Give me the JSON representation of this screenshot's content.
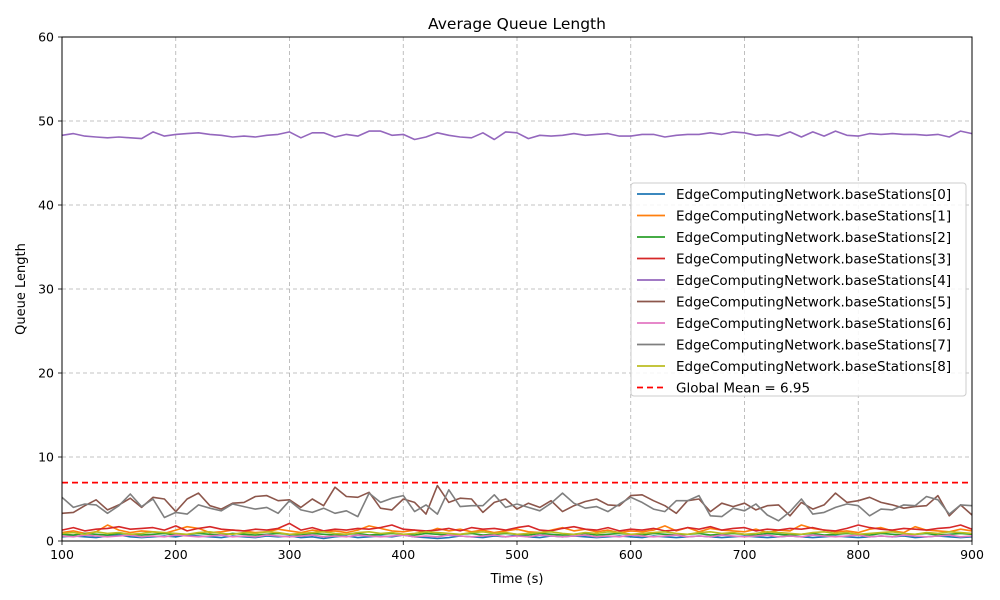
{
  "chart_data": {
    "type": "line",
    "title": "Average Queue Length",
    "xlabel": "Time (s)",
    "ylabel": "Queue Length",
    "xlim": [
      100,
      900
    ],
    "ylim": [
      0,
      60
    ],
    "xticks": [
      "100",
      "200",
      "300",
      "400",
      "500",
      "600",
      "700",
      "800",
      "900"
    ],
    "yticks": [
      "0",
      "10",
      "20",
      "30",
      "40",
      "50",
      "60"
    ],
    "grid": true,
    "legend_position": "center-right",
    "x": [
      100,
      110,
      120,
      130,
      140,
      150,
      160,
      170,
      180,
      190,
      200,
      210,
      220,
      230,
      240,
      250,
      260,
      270,
      280,
      290,
      300,
      310,
      320,
      330,
      340,
      350,
      360,
      370,
      380,
      390,
      400,
      410,
      420,
      430,
      440,
      450,
      460,
      470,
      480,
      490,
      500,
      510,
      520,
      530,
      540,
      550,
      560,
      570,
      580,
      590,
      600,
      610,
      620,
      630,
      640,
      650,
      660,
      670,
      680,
      690,
      700,
      710,
      720,
      730,
      740,
      750,
      760,
      770,
      780,
      790,
      800,
      810,
      820,
      830,
      840,
      850,
      860,
      870,
      880,
      890,
      900
    ],
    "series": [
      {
        "name": "EdgeComputingNetwork.baseStations[0]",
        "color": "#1f77b4",
        "values": [
          0.5,
          0.6,
          0.5,
          0.4,
          0.6,
          0.7,
          0.5,
          0.4,
          0.5,
          0.6,
          0.5,
          0.7,
          0.6,
          0.5,
          0.4,
          0.6,
          0.5,
          0.4,
          0.6,
          0.5,
          0.6,
          0.4,
          0.5,
          0.3,
          0.5,
          0.6,
          0.4,
          0.5,
          0.6,
          0.5,
          0.7,
          0.5,
          0.4,
          0.3,
          0.4,
          0.6,
          0.5,
          0.4,
          0.6,
          0.5,
          0.7,
          0.5,
          0.4,
          0.6,
          0.5,
          0.6,
          0.5,
          0.4,
          0.5,
          0.6,
          0.5,
          0.4,
          0.6,
          0.5,
          0.4,
          0.5,
          0.6,
          0.5,
          0.4,
          0.5,
          0.6,
          0.5,
          0.4,
          0.5,
          0.6,
          0.5,
          0.4,
          0.5,
          0.6,
          0.5,
          0.4,
          0.5,
          0.6,
          0.5,
          0.6,
          0.4,
          0.5,
          0.6,
          0.5,
          0.4,
          0.5
        ]
      },
      {
        "name": "EdgeComputingNetwork.baseStations[1]",
        "color": "#ff7f0e",
        "values": [
          1.0,
          1.2,
          0.9,
          1.1,
          1.9,
          1.3,
          1.0,
          1.2,
          1.1,
          0.9,
          1.3,
          1.7,
          1.5,
          1.0,
          1.1,
          1.3,
          1.2,
          1.0,
          1.1,
          1.4,
          1.2,
          1.0,
          1.3,
          1.1,
          1.2,
          1.0,
          1.3,
          1.8,
          1.5,
          1.2,
          1.1,
          1.3,
          1.0,
          1.5,
          1.2,
          1.4,
          1.1,
          1.3,
          1.0,
          1.2,
          1.4,
          1.1,
          1.0,
          1.3,
          1.6,
          1.2,
          1.4,
          1.1,
          1.3,
          1.0,
          1.2,
          1.1,
          1.3,
          1.8,
          1.2,
          1.6,
          1.1,
          1.5,
          1.3,
          1.2,
          1.1,
          1.4,
          1.0,
          1.3,
          1.2,
          1.9,
          1.5,
          1.3,
          1.1,
          1.2,
          1.0,
          1.4,
          1.6,
          1.2,
          1.0,
          1.7,
          1.3,
          1.2,
          1.1,
          1.4,
          1.2
        ]
      },
      {
        "name": "EdgeComputingNetwork.baseStations[2]",
        "color": "#2ca02c",
        "values": [
          0.8,
          0.7,
          0.9,
          0.8,
          0.7,
          0.9,
          0.8,
          0.7,
          0.8,
          0.9,
          0.7,
          0.8,
          0.9,
          0.8,
          0.7,
          0.9,
          0.8,
          0.7,
          0.8,
          0.9,
          0.8,
          0.7,
          0.9,
          0.8,
          0.7,
          0.8,
          0.9,
          0.7,
          0.8,
          0.9,
          0.8,
          0.7,
          0.9,
          0.8,
          0.7,
          0.8,
          0.9,
          0.7,
          0.8,
          0.9,
          0.8,
          0.7,
          0.9,
          0.8,
          0.7,
          0.8,
          0.9,
          0.7,
          0.8,
          0.9,
          0.8,
          0.7,
          0.9,
          0.8,
          0.7,
          0.8,
          0.9,
          0.7,
          0.8,
          0.9,
          0.8,
          0.7,
          0.9,
          0.8,
          0.7,
          0.8,
          0.9,
          0.7,
          0.8,
          0.9,
          0.8,
          0.7,
          0.9,
          0.8,
          0.7,
          0.8,
          0.9,
          0.7,
          0.8,
          0.9,
          0.8
        ]
      },
      {
        "name": "EdgeComputingNetwork.baseStations[3]",
        "color": "#d62728",
        "values": [
          1.3,
          1.6,
          1.2,
          1.4,
          1.5,
          1.7,
          1.4,
          1.5,
          1.6,
          1.3,
          1.8,
          1.2,
          1.5,
          1.7,
          1.4,
          1.3,
          1.2,
          1.4,
          1.3,
          1.5,
          2.1,
          1.3,
          1.6,
          1.2,
          1.4,
          1.3,
          1.5,
          1.4,
          1.6,
          1.9,
          1.4,
          1.3,
          1.2,
          1.3,
          1.5,
          1.2,
          1.6,
          1.4,
          1.5,
          1.3,
          1.6,
          1.8,
          1.3,
          1.2,
          1.5,
          1.7,
          1.4,
          1.3,
          1.6,
          1.2,
          1.4,
          1.3,
          1.5,
          1.2,
          1.3,
          1.6,
          1.4,
          1.7,
          1.3,
          1.5,
          1.6,
          1.2,
          1.4,
          1.3,
          1.5,
          1.4,
          1.6,
          1.3,
          1.2,
          1.5,
          1.9,
          1.6,
          1.4,
          1.3,
          1.5,
          1.4,
          1.3,
          1.5,
          1.6,
          1.9,
          1.4
        ]
      },
      {
        "name": "EdgeComputingNetwork.baseStations[4]",
        "color": "#9467bd",
        "values": [
          48.3,
          48.5,
          48.2,
          48.1,
          48.0,
          48.1,
          48.0,
          47.9,
          48.7,
          48.2,
          48.4,
          48.5,
          48.6,
          48.4,
          48.3,
          48.1,
          48.2,
          48.1,
          48.3,
          48.4,
          48.7,
          48.0,
          48.6,
          48.6,
          48.1,
          48.4,
          48.2,
          48.8,
          48.8,
          48.3,
          48.4,
          47.8,
          48.1,
          48.6,
          48.3,
          48.1,
          48.0,
          48.6,
          47.8,
          48.7,
          48.6,
          47.9,
          48.3,
          48.2,
          48.3,
          48.5,
          48.3,
          48.4,
          48.5,
          48.2,
          48.2,
          48.4,
          48.4,
          48.1,
          48.3,
          48.4,
          48.4,
          48.6,
          48.4,
          48.7,
          48.6,
          48.3,
          48.4,
          48.2,
          48.7,
          48.1,
          48.7,
          48.2,
          48.8,
          48.3,
          48.2,
          48.5,
          48.4,
          48.5,
          48.4,
          48.4,
          48.3,
          48.4,
          48.1,
          48.8,
          48.5
        ]
      },
      {
        "name": "EdgeComputingNetwork.baseStations[5]",
        "color": "#8c564b",
        "values": [
          3.3,
          3.4,
          4.2,
          4.9,
          3.7,
          4.3,
          5.1,
          4.0,
          5.2,
          5.0,
          3.5,
          5.0,
          5.7,
          4.2,
          3.8,
          4.5,
          4.6,
          5.3,
          5.4,
          4.8,
          4.9,
          4.0,
          5.0,
          4.2,
          6.4,
          5.3,
          5.2,
          5.8,
          3.9,
          3.7,
          5.0,
          4.6,
          3.2,
          6.6,
          4.6,
          5.1,
          5.0,
          3.4,
          4.6,
          5.0,
          3.8,
          4.5,
          4.0,
          4.8,
          3.5,
          4.2,
          4.7,
          5.0,
          4.3,
          4.2,
          5.4,
          5.5,
          4.8,
          4.2,
          3.3,
          4.8,
          5.0,
          3.5,
          4.5,
          4.1,
          4.5,
          3.7,
          4.2,
          4.3,
          3.0,
          4.6,
          3.8,
          4.3,
          5.7,
          4.6,
          4.8,
          5.2,
          4.6,
          4.3,
          3.9,
          4.1,
          4.2,
          5.4,
          3.0,
          4.3,
          3.1
        ]
      },
      {
        "name": "EdgeComputingNetwork.baseStations[6]",
        "color": "#e377c2",
        "values": [
          0.6,
          0.5,
          0.7,
          0.6,
          0.5,
          0.6,
          0.7,
          0.5,
          0.6,
          0.5,
          0.7,
          0.6,
          0.5,
          0.6,
          0.7,
          0.5,
          0.6,
          0.5,
          0.7,
          0.6,
          0.5,
          0.6,
          0.7,
          0.5,
          0.6,
          0.5,
          0.7,
          0.6,
          0.5,
          0.6,
          0.7,
          0.5,
          0.6,
          0.5,
          0.7,
          0.6,
          0.5,
          0.6,
          0.7,
          0.5,
          0.6,
          0.5,
          0.7,
          0.6,
          0.5,
          0.6,
          0.7,
          0.5,
          0.6,
          0.5,
          0.7,
          0.6,
          0.5,
          0.6,
          0.7,
          0.5,
          0.6,
          0.5,
          0.7,
          0.6,
          0.5,
          0.6,
          0.7,
          0.5,
          0.6,
          0.5,
          0.7,
          0.6,
          0.5,
          0.6,
          0.7,
          0.5,
          0.6,
          0.5,
          0.7,
          0.6,
          0.5,
          0.6,
          0.7,
          0.5,
          0.6
        ]
      },
      {
        "name": "EdgeComputingNetwork.baseStations[7]",
        "color": "#7f7f7f",
        "values": [
          5.2,
          4.0,
          4.4,
          4.3,
          3.3,
          4.2,
          5.6,
          4.1,
          5.0,
          2.8,
          3.4,
          3.2,
          4.3,
          3.9,
          3.6,
          4.4,
          4.1,
          3.8,
          4.0,
          3.3,
          4.8,
          3.7,
          3.4,
          3.9,
          3.3,
          3.6,
          2.9,
          5.7,
          4.6,
          5.1,
          5.4,
          3.5,
          4.3,
          3.2,
          6.1,
          4.1,
          4.2,
          4.2,
          5.5,
          4.0,
          4.4,
          4.0,
          3.6,
          4.5,
          5.7,
          4.5,
          3.9,
          4.1,
          3.5,
          4.4,
          5.2,
          4.6,
          3.8,
          3.5,
          4.8,
          4.8,
          5.4,
          3.0,
          2.9,
          3.9,
          3.6,
          4.4,
          3.1,
          2.4,
          3.5,
          5.0,
          3.2,
          3.4,
          4.0,
          4.4,
          4.2,
          3.0,
          3.8,
          3.7,
          4.3,
          4.2,
          5.3,
          4.9,
          3.2,
          4.3,
          4.2
        ]
      },
      {
        "name": "EdgeComputingNetwork.baseStations[8]",
        "color": "#bcbd22",
        "values": [
          0.9,
          1.0,
          0.8,
          1.1,
          0.9,
          1.0,
          0.8,
          0.9,
          1.1,
          1.0,
          0.9,
          0.8,
          1.0,
          1.1,
          0.9,
          0.8,
          1.0,
          0.9,
          1.1,
          1.0,
          0.8,
          0.9,
          1.0,
          1.1,
          0.9,
          0.8,
          1.0,
          1.1,
          0.9,
          1.0,
          0.8,
          0.9,
          1.1,
          1.0,
          0.9,
          0.8,
          1.0,
          1.1,
          0.9,
          1.0,
          0.8,
          0.9,
          1.0,
          1.1,
          0.9,
          0.8,
          1.0,
          0.9,
          1.1,
          1.0,
          0.8,
          0.9,
          1.0,
          1.1,
          0.9,
          0.8,
          1.0,
          1.1,
          0.9,
          1.0,
          0.8,
          0.9,
          1.1,
          1.0,
          0.9,
          0.8,
          1.0,
          1.1,
          0.9,
          1.0,
          0.8,
          0.9,
          1.0,
          1.1,
          0.9,
          0.8,
          1.0,
          0.9,
          1.1,
          1.0,
          0.9
        ]
      }
    ],
    "mean_line": {
      "name": "Global Mean = 6.95",
      "value": 6.95,
      "color": "#ff0000",
      "style": "dashed"
    }
  }
}
